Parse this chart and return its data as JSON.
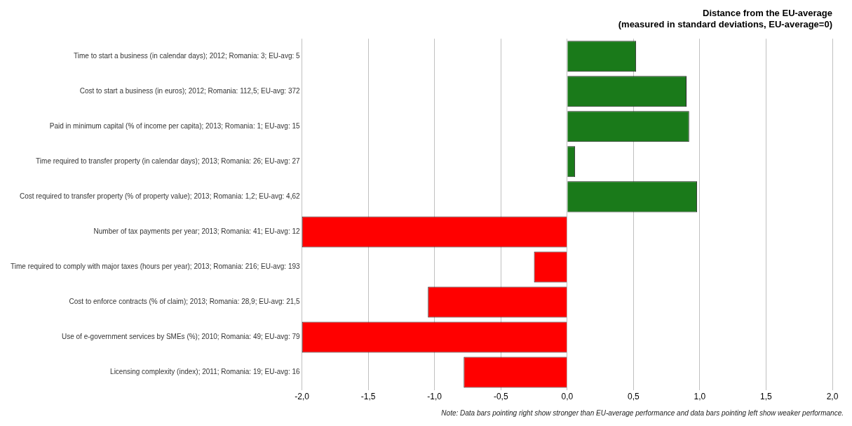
{
  "chart_data": {
    "type": "bar",
    "orientation": "horizontal",
    "title": "Distance from the EU-average",
    "subtitle": "(measured in standard deviations, EU-average=0)",
    "categories": [
      "Time to start a business (in calendar days); 2012; Romania: 3; EU-avg: 5",
      "Cost to start a business (in euros); 2012; Romania: 112,5; EU-avg: 372",
      "Paid in minimum capital (% of income per capita); 2013; Romania: 1; EU-avg: 15",
      "Time required to transfer property (in calendar days); 2013; Romania: 26; EU-avg: 27",
      "Cost required to transfer property (% of property value); 2013; Romania: 1,2; EU-avg: 4,62",
      "Number of tax payments per year; 2013; Romania: 41; EU-avg: 12",
      "Time required to comply with major taxes (hours per year); 2013; Romania: 216; EU-avg: 193",
      "Cost to enforce contracts (% of claim); 2013; Romania: 28,9; EU-avg: 21,5",
      "Use of e-government services by SMEs (%); 2010; Romania: 49; EU-avg: 79",
      "Licensing complexity (index); 2011; Romania: 19; EU-avg: 16"
    ],
    "values": [
      0.52,
      0.9,
      0.92,
      0.06,
      0.98,
      -2.0,
      -0.25,
      -1.05,
      -2.0,
      -0.78
    ],
    "colors": [
      "#1a7a1a",
      "#1a7a1a",
      "#1a7a1a",
      "#1a7a1a",
      "#1a7a1a",
      "#ff0000",
      "#ff0000",
      "#ff0000",
      "#ff0000",
      "#ff0000"
    ],
    "xlim": [
      -2.0,
      2.0
    ],
    "xticks": [
      {
        "value": -2.0,
        "label": "-2,0"
      },
      {
        "value": -1.5,
        "label": "-1,5"
      },
      {
        "value": -1.0,
        "label": "-1,0"
      },
      {
        "value": -0.5,
        "label": "-0,5"
      },
      {
        "value": 0,
        "label": "0,0"
      },
      {
        "value": 0.5,
        "label": "0,5"
      },
      {
        "value": 1.0,
        "label": "1,0"
      },
      {
        "value": 1.5,
        "label": "1,5"
      },
      {
        "value": 2.0,
        "label": "2,0"
      }
    ],
    "grid": "x",
    "legend": false,
    "annotations": [
      "Note: Data bars pointing right show stronger than EU-average performance and data bars pointing left show weaker performance."
    ]
  }
}
